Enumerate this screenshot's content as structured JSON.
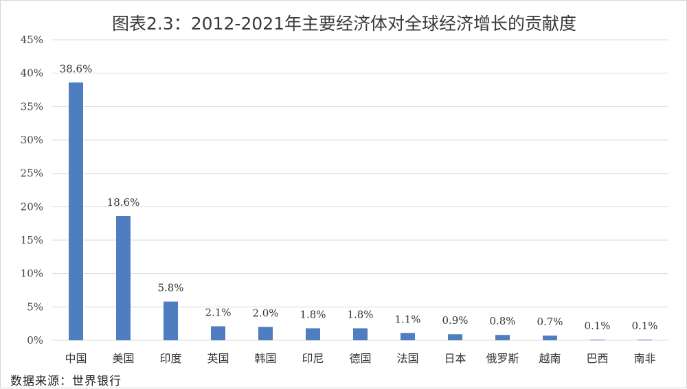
{
  "chart_data": {
    "type": "bar",
    "title": "图表2.3：2012-2021年主要经济体对全球经济增长的贡献度",
    "categories": [
      "中国",
      "美国",
      "印度",
      "英国",
      "韩国",
      "印尼",
      "德国",
      "法国",
      "日本",
      "俄罗斯",
      "越南",
      "巴西",
      "南非"
    ],
    "values": [
      38.6,
      18.6,
      5.8,
      2.1,
      2.0,
      1.8,
      1.8,
      1.1,
      0.9,
      0.8,
      0.7,
      0.1,
      0.1
    ],
    "data_labels": [
      "38.6%",
      "18.6%",
      "5.8%",
      "2.1%",
      "2.0%",
      "1.8%",
      "1.8%",
      "1.1%",
      "0.9%",
      "0.8%",
      "0.7%",
      "0.1%",
      "0.1%"
    ],
    "ylim": [
      0,
      45
    ],
    "yticks": [
      0,
      5,
      10,
      15,
      20,
      25,
      30,
      35,
      40,
      45
    ],
    "ytick_labels": [
      "0%",
      "5%",
      "10%",
      "15%",
      "20%",
      "25%",
      "30%",
      "35%",
      "40%",
      "45%"
    ],
    "xlabel": "",
    "ylabel": "",
    "grid": true,
    "legend": "none",
    "bar_color": "#4E7EC0",
    "grid_color": "#d9d9d9"
  },
  "footer": {
    "source": "数据来源：世界银行"
  }
}
